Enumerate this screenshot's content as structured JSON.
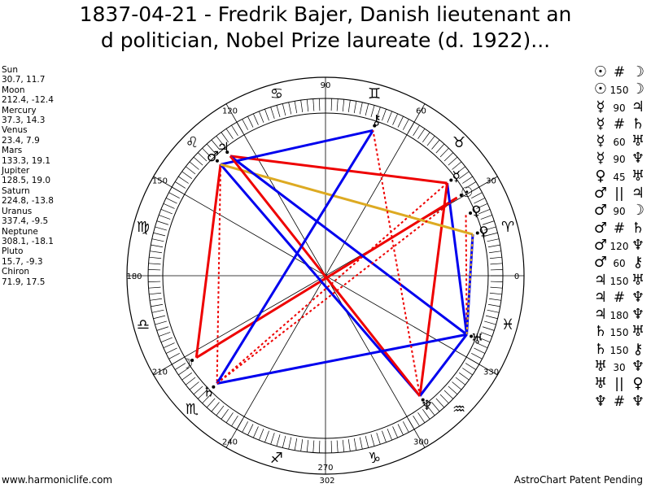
{
  "title": {
    "line1": "1837-04-21 - Fredrik Bajer, Danish lieutenant an",
    "line2": "d politician, Nobel Prize laureate (d. 1922)..."
  },
  "positions": [
    {
      "name": "Sun",
      "value": "30.7, 11.7"
    },
    {
      "name": "Moon",
      "value": "212.4, -12.4"
    },
    {
      "name": "Mercury",
      "value": "37.3, 14.3"
    },
    {
      "name": "Venus",
      "value": "23.4, 7.9"
    },
    {
      "name": "Mars",
      "value": "133.3, 19.1"
    },
    {
      "name": "Jupiter",
      "value": "128.5, 19.0"
    },
    {
      "name": "Saturn",
      "value": "224.8, -13.8"
    },
    {
      "name": "Uranus",
      "value": "337.4, -9.5"
    },
    {
      "name": "Neptune",
      "value": "308.1, -18.1"
    },
    {
      "name": "Pluto",
      "value": "15.7, -9.3"
    },
    {
      "name": "Chiron",
      "value": "71.9, 17.5"
    }
  ],
  "aspects": [
    {
      "p1": "☉",
      "mark": "#",
      "p2": "☽"
    },
    {
      "p1": "☉",
      "mark": "150",
      "p2": "☽"
    },
    {
      "p1": "☿",
      "mark": "90",
      "p2": "♃"
    },
    {
      "p1": "☿",
      "mark": "#",
      "p2": "♄"
    },
    {
      "p1": "☿",
      "mark": "60",
      "p2": "♅"
    },
    {
      "p1": "☿",
      "mark": "90",
      "p2": "♆"
    },
    {
      "p1": "♀",
      "mark": "45",
      "p2": "♅"
    },
    {
      "p1": "♂",
      "mark": "||",
      "p2": "♃"
    },
    {
      "p1": "♂",
      "mark": "90",
      "p2": "☽"
    },
    {
      "p1": "♂",
      "mark": "#",
      "p2": "♄"
    },
    {
      "p1": "♂",
      "mark": "120",
      "p2": "♆"
    },
    {
      "p1": "♂",
      "mark": "60",
      "p2": "⚷"
    },
    {
      "p1": "♃",
      "mark": "150",
      "p2": "♅"
    },
    {
      "p1": "♃",
      "mark": "#",
      "p2": "♆"
    },
    {
      "p1": "♃",
      "mark": "180",
      "p2": "♆"
    },
    {
      "p1": "♄",
      "mark": "150",
      "p2": "♅"
    },
    {
      "p1": "♄",
      "mark": "150",
      "p2": "⚷"
    },
    {
      "p1": "♅",
      "mark": "30",
      "p2": "♆"
    },
    {
      "p1": "♅",
      "mark": "||",
      "p2": "♀"
    },
    {
      "p1": "♆",
      "mark": "#",
      "p2": "♆"
    }
  ],
  "wheel": {
    "degree_labels": [
      "0",
      "30",
      "60",
      "90",
      "120",
      "150",
      "180",
      "210",
      "240",
      "270",
      "300",
      "330"
    ],
    "extra_label": "302"
  },
  "chart_data": {
    "type": "astrological-wheel",
    "degree_axis": [
      0,
      30,
      60,
      90,
      120,
      150,
      180,
      210,
      240,
      270,
      300,
      330
    ],
    "zodiac_signs": [
      "♈",
      "♉",
      "♊",
      "♋",
      "♌",
      "♍",
      "♎",
      "♏",
      "♐",
      "♑",
      "♒",
      "♓"
    ],
    "planets": [
      {
        "name": "Sun",
        "glyph": "☉",
        "longitude": 30.7,
        "latitude": 11.7
      },
      {
        "name": "Moon",
        "glyph": "☽",
        "longitude": 212.4,
        "latitude": -12.4
      },
      {
        "name": "Mercury",
        "glyph": "☿",
        "longitude": 37.3,
        "latitude": 14.3
      },
      {
        "name": "Venus",
        "glyph": "♀",
        "longitude": 23.4,
        "latitude": 7.9
      },
      {
        "name": "Mars",
        "glyph": "♂",
        "longitude": 133.3,
        "latitude": 19.1
      },
      {
        "name": "Jupiter",
        "glyph": "♃",
        "longitude": 128.5,
        "latitude": 19.0
      },
      {
        "name": "Saturn",
        "glyph": "♄",
        "longitude": 224.8,
        "latitude": -13.8
      },
      {
        "name": "Uranus",
        "glyph": "♅",
        "longitude": 337.4,
        "latitude": -9.5
      },
      {
        "name": "Neptune",
        "glyph": "♆",
        "longitude": 308.1,
        "latitude": -18.1
      },
      {
        "name": "Pluto",
        "glyph": "♀",
        "longitude": 15.7,
        "latitude": -9.3
      },
      {
        "name": "Chiron",
        "glyph": "⚷",
        "longitude": 71.9,
        "latitude": 17.5
      }
    ],
    "aspect_lines": [
      {
        "from": "Sun",
        "to": "Moon",
        "color": "#ee0000",
        "style": "solid"
      },
      {
        "from": "Mercury",
        "to": "Jupiter",
        "color": "#ee0000",
        "style": "solid"
      },
      {
        "from": "Mercury",
        "to": "Saturn",
        "color": "#ee0000",
        "style": "dotted"
      },
      {
        "from": "Mercury",
        "to": "Uranus",
        "color": "#0000ee",
        "style": "solid"
      },
      {
        "from": "Mercury",
        "to": "Neptune",
        "color": "#ee0000",
        "style": "solid"
      },
      {
        "from": "Venus",
        "to": "Uranus",
        "color": "#ee0000",
        "style": "dotted"
      },
      {
        "from": "Mars",
        "to": "Moon",
        "color": "#ee0000",
        "style": "solid"
      },
      {
        "from": "Mars",
        "to": "Saturn",
        "color": "#ee0000",
        "style": "dotted"
      },
      {
        "from": "Mars",
        "to": "Neptune",
        "color": "#0000ee",
        "style": "solid"
      },
      {
        "from": "Mars",
        "to": "Chiron",
        "color": "#0000ee",
        "style": "solid"
      },
      {
        "from": "Mars",
        "to": "Pluto",
        "color": "#ddaa22",
        "style": "solid"
      },
      {
        "from": "Jupiter",
        "to": "Uranus",
        "color": "#0000ee",
        "style": "solid"
      },
      {
        "from": "Jupiter",
        "to": "Neptune",
        "color": "#ee0000",
        "style": "solid"
      },
      {
        "from": "Saturn",
        "to": "Uranus",
        "color": "#0000ee",
        "style": "solid"
      },
      {
        "from": "Saturn",
        "to": "Chiron",
        "color": "#0000ee",
        "style": "solid"
      },
      {
        "from": "Saturn",
        "to": "Sun",
        "color": "#ee0000",
        "style": "dotted"
      },
      {
        "from": "Uranus",
        "to": "Neptune",
        "color": "#0000ee",
        "style": "solid"
      },
      {
        "from": "Uranus",
        "to": "Pluto",
        "color": "#0000ee",
        "style": "solid"
      },
      {
        "from": "Neptune",
        "to": "Chiron",
        "color": "#ee0000",
        "style": "dotted"
      },
      {
        "from": "Pluto",
        "to": "Uranus",
        "color": "#ddaa22",
        "style": "dotted"
      }
    ],
    "colors": {
      "red": "#ee0000",
      "blue": "#0000ee",
      "gold": "#ddaa22"
    }
  },
  "footer": {
    "left": "www.harmoniclife.com",
    "right": "AstroChart Patent Pending"
  }
}
